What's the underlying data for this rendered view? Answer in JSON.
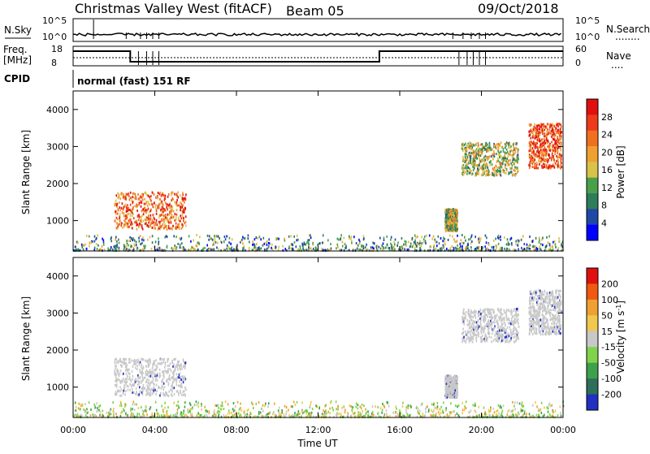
{
  "header": {
    "station": "Christmas Valley West (fitACF)",
    "beam": "Beam 05",
    "date": "09/Oct/2018"
  },
  "status_panels": {
    "nsky_label": "N.Sky",
    "nsearch_label": "N.Search",
    "nsearch_marker": "........",
    "left_tick_top": "10^5",
    "left_tick_bottom": "10^0",
    "right_tick_top": "10^5",
    "right_tick_bottom": "10^0",
    "freq_label_1": "Freq.",
    "freq_label_2": "[MHz]",
    "freq_tick_top": "18",
    "freq_tick_bottom": "8",
    "nave_label": "Nave",
    "nave_marker": "....",
    "nave_tick_top": "60",
    "nave_tick_bottom": "0",
    "cpid_label": "CPID",
    "cpid_value": "normal (fast) 151 RF"
  },
  "colors": {
    "ground": "#c8c8c8",
    "power_scale": [
      "#0000ff",
      "#1f48a6",
      "#2d7d5a",
      "#4aa04a",
      "#d9c24a",
      "#f0a030",
      "#f07020",
      "#ee3a1a",
      "#e01010"
    ],
    "velocity_scale": [
      "#e01010",
      "#f05a10",
      "#f0a030",
      "#f0c850",
      "#c8c8c8",
      "#7fd34a",
      "#3ea04a",
      "#2d6f5a",
      "#2030c0"
    ]
  },
  "chart_data": [
    {
      "type": "heatmap",
      "name": "power",
      "ylabel": "Slant Range [km]",
      "yticks": [
        "1000",
        "2000",
        "3000",
        "4000"
      ],
      "ylim": [
        180,
        4500
      ],
      "xlim": [
        0,
        24
      ],
      "colorbar": {
        "label": "Power [dB]",
        "ticks": [
          "4",
          "8",
          "12",
          "16",
          "20",
          "24",
          "28"
        ],
        "range": [
          0,
          30
        ]
      },
      "echo_regions": [
        {
          "t_start": 0.0,
          "t_end": 24.0,
          "r_min": 180,
          "r_max": 600,
          "value": 10,
          "kind": "near-range clutter"
        },
        {
          "t_start": 2.0,
          "t_end": 5.5,
          "r_min": 750,
          "r_max": 1750,
          "value": 22,
          "kind": "ionospheric"
        },
        {
          "t_start": 18.2,
          "t_end": 18.8,
          "r_min": 700,
          "r_max": 1300,
          "value": 14,
          "kind": "ionospheric"
        },
        {
          "t_start": 19.0,
          "t_end": 21.8,
          "r_min": 2200,
          "r_max": 3100,
          "value": 14,
          "kind": "ionospheric"
        },
        {
          "t_start": 22.3,
          "t_end": 23.9,
          "r_min": 2400,
          "r_max": 3600,
          "value": 24,
          "kind": "ionospheric"
        }
      ]
    },
    {
      "type": "heatmap",
      "name": "velocity",
      "ylabel": "Slant Range [km]",
      "yticks": [
        "1000",
        "2000",
        "3000",
        "4000"
      ],
      "ylim": [
        180,
        4500
      ],
      "xlim": [
        0,
        24
      ],
      "xlabel": "Time UT",
      "xticks": [
        "00:00",
        "04:00",
        "08:00",
        "12:00",
        "16:00",
        "20:00",
        "00:00"
      ],
      "colorbar": {
        "label": "Velocity [m s^-1]",
        "ticks": [
          "200",
          "100",
          "50",
          "15",
          "-15",
          "-50",
          "-100",
          "-200"
        ],
        "range": [
          -200,
          200
        ]
      },
      "echo_regions": [
        {
          "t_start": 0.0,
          "t_end": 24.0,
          "r_min": 180,
          "r_max": 600,
          "value": 30,
          "kind": "near-range mixed"
        },
        {
          "t_start": 2.0,
          "t_end": 5.5,
          "r_min": 750,
          "r_max": 1750,
          "value": 0,
          "kind": "ground scatter"
        },
        {
          "t_start": 18.2,
          "t_end": 18.8,
          "r_min": 700,
          "r_max": 1300,
          "value": 0,
          "kind": "ground scatter"
        },
        {
          "t_start": 19.0,
          "t_end": 21.8,
          "r_min": 2200,
          "r_max": 3100,
          "value": 0,
          "kind": "ground scatter"
        },
        {
          "t_start": 22.3,
          "t_end": 23.9,
          "r_min": 2400,
          "r_max": 3600,
          "value": 0,
          "kind": "ground scatter"
        }
      ]
    }
  ]
}
